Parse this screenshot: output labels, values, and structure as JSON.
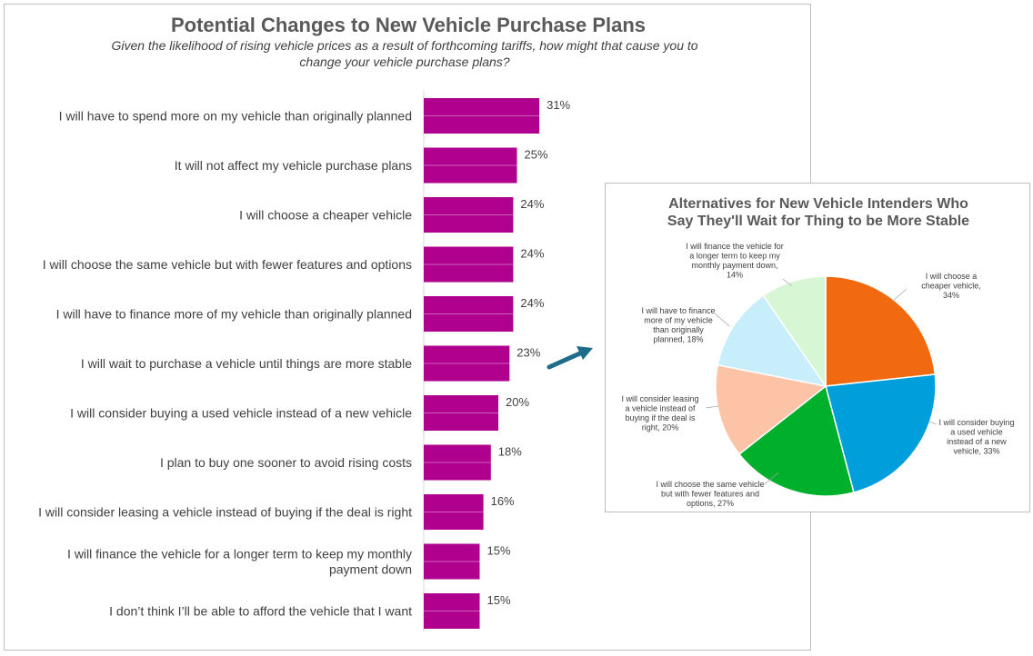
{
  "chart_data": [
    {
      "type": "bar",
      "orientation": "horizontal",
      "title": "Potential Changes to New Vehicle Purchase Plans",
      "subtitle_lines": [
        "Given the likelihood of rising vehicle prices as a result of forthcoming tariffs, how might that cause you to",
        "change your vehicle purchase plans?"
      ],
      "categories": [
        [
          "I will have to spend more on my vehicle than originally planned"
        ],
        [
          "It will not affect my vehicle purchase plans"
        ],
        [
          "I will choose a cheaper vehicle"
        ],
        [
          "I will choose the same vehicle but with fewer features and options"
        ],
        [
          "I will have to finance more of my vehicle than originally planned"
        ],
        [
          "I will wait to purchase a vehicle until things are more stable"
        ],
        [
          "I will consider buying a used vehicle instead of a new vehicle"
        ],
        [
          "I plan to buy one sooner to avoid rising costs"
        ],
        [
          "I will consider leasing a vehicle instead of buying if the deal is right"
        ],
        [
          "I will finance the vehicle for a longer term to keep my monthly",
          "payment down"
        ],
        [
          "I don’t think I’ll be able to afford the vehicle that I want"
        ]
      ],
      "values": [
        31,
        25,
        24,
        24,
        24,
        23,
        20,
        18,
        16,
        15,
        15
      ],
      "value_labels": [
        "31%",
        "25%",
        "24%",
        "24%",
        "24%",
        "23%",
        "20%",
        "18%",
        "16%",
        "15%",
        "15%"
      ],
      "color": "#b0008e",
      "legend": "none"
    },
    {
      "type": "pie",
      "title_lines": [
        "Alternatives for New Vehicle Intenders Who",
        "Say They'll Wait for Thing to be More Stable"
      ],
      "slices": [
        {
          "label": [
            "I will choose a",
            "cheaper vehicle,",
            "34%"
          ],
          "value": 34,
          "color": "#f26a10"
        },
        {
          "label": [
            "I will consider buying",
            "a used vehicle",
            "instead of a new",
            "vehicle, 33%"
          ],
          "value": 33,
          "color": "#009fdb"
        },
        {
          "label": [
            "I will choose the same vehicle",
            "but with fewer features and",
            "options, 27%"
          ],
          "value": 27,
          "color": "#00b02c"
        },
        {
          "label": [
            "I will consider leasing",
            "a vehicle instead of",
            "buying if the deal is",
            "right, 20%"
          ],
          "value": 20,
          "color": "#fcc3a6"
        },
        {
          "label": [
            "I will have to finance",
            "more of my vehicle",
            "than originally",
            "planned, 18%"
          ],
          "value": 18,
          "color": "#c8edfb"
        },
        {
          "label": [
            "I will finance the vehicle for",
            "a longer term to keep my",
            "monthly payment down,",
            "14%"
          ],
          "value": 14,
          "color": "#d6f6d4"
        }
      ],
      "legend": "none"
    }
  ]
}
